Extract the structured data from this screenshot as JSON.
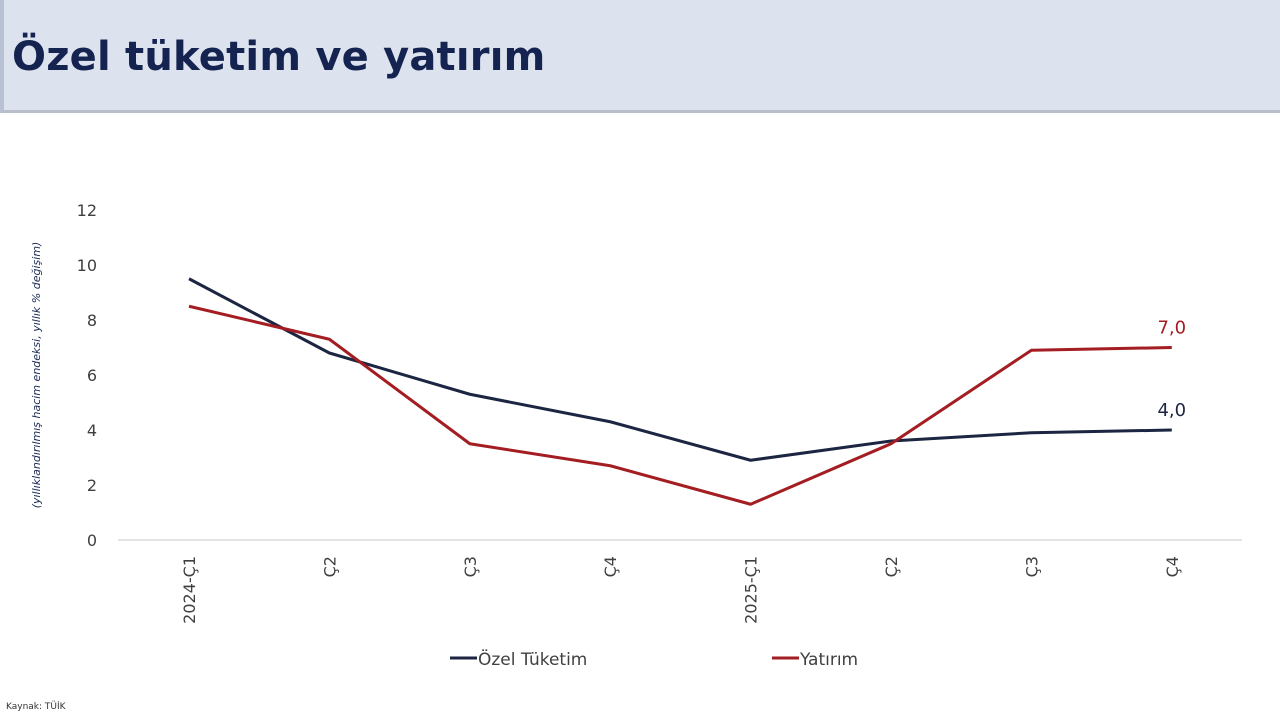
{
  "header": {
    "title": "Özel tüketim ve yatırım"
  },
  "source": "Kaynak: TÜİK",
  "chart_data": {
    "type": "line",
    "title": "",
    "xlabel": "",
    "ylabel": "(yıllıklandırılmış hacim endeksi, yıllık % değişim)",
    "ylim": [
      0,
      12
    ],
    "yticks": [
      0,
      2,
      4,
      6,
      8,
      10,
      12
    ],
    "grid": false,
    "legend": "bottom",
    "categories": [
      "2024-Ç1",
      "Ç2",
      "Ç3",
      "Ç4",
      "2025-Ç1",
      "Ç2",
      "Ç3",
      "Ç4"
    ],
    "series": [
      {
        "name": "Özel Tüketim",
        "color": "#1c2541",
        "values": [
          9.5,
          6.8,
          5.3,
          4.3,
          2.9,
          3.6,
          3.9,
          4.0
        ],
        "last_label": "4,0"
      },
      {
        "name": "Yatırım",
        "color": "#a31d22",
        "values": [
          8.5,
          7.3,
          3.5,
          2.7,
          1.3,
          3.5,
          6.9,
          7.0
        ],
        "last_label": "7,0"
      }
    ]
  }
}
